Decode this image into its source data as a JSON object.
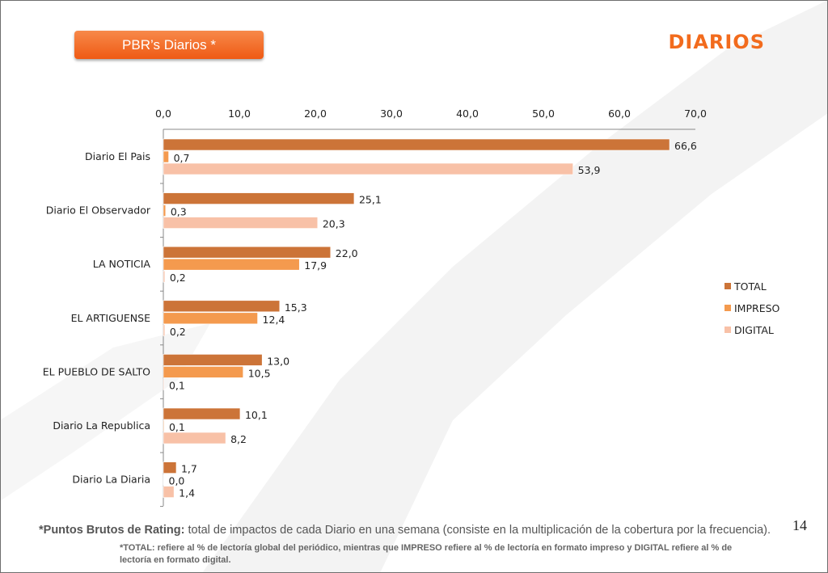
{
  "badge": {
    "label": "PBR’s Diarios  *"
  },
  "section_title": "DIARIOS",
  "page_number": "14",
  "footnote": {
    "term": "*Puntos Brutos de Rating:",
    "text": " total de impactos de cada Diario en una semana (consiste en la multiplicación de la cobertura por la frecuencia).",
    "note": "*TOTAL: refiere al % de lectoría global del periódico, mientras que IMPRESO refiere al % de lectoría en formato impreso y DIGITAL refiere al % de lectoría en formato digital."
  },
  "colors": {
    "total": "#cc7438",
    "impreso": "#f49a4e",
    "digital": "#f8c1a7",
    "badge": "#ef5a14",
    "title": "#f26b1d"
  },
  "chart_data": {
    "type": "bar",
    "orientation": "horizontal",
    "axis_position": "top",
    "xlim": [
      0,
      70
    ],
    "x_ticks": [
      "0,0",
      "10,0",
      "20,0",
      "30,0",
      "40,0",
      "50,0",
      "60,0",
      "70,0"
    ],
    "categories": [
      "Diario El Pais",
      "Diario El Observador",
      "LA NOTICIA",
      "EL ARTIGUENSE",
      "EL PUEBLO DE SALTO",
      "Diario La Republica",
      "Diario La Diaria"
    ],
    "series": [
      {
        "name": "TOTAL",
        "values": [
          66.6,
          25.1,
          22.0,
          15.3,
          13.0,
          10.1,
          1.7
        ],
        "labels": [
          "66,6",
          "25,1",
          "22,0",
          "15,3",
          "13,0",
          "10,1",
          "1,7"
        ]
      },
      {
        "name": "IMPRESO",
        "values": [
          0.7,
          0.3,
          17.9,
          12.4,
          10.5,
          0.1,
          0.0
        ],
        "labels": [
          "0,7",
          "0,3",
          "17,9",
          "12,4",
          "10,5",
          "0,1",
          "0,0"
        ]
      },
      {
        "name": "DIGITAL",
        "values": [
          53.9,
          20.3,
          0.2,
          0.2,
          0.1,
          8.2,
          1.4
        ],
        "labels": [
          "53,9",
          "20,3",
          "0,2",
          "0,2",
          "0,1",
          "8,2",
          "1,4"
        ]
      }
    ],
    "legend_position": "right",
    "grid": false
  }
}
